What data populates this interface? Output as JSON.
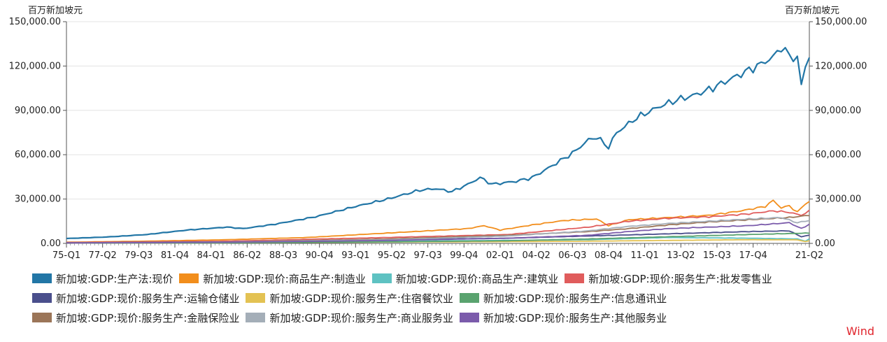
{
  "chart_data": {
    "type": "line",
    "y_unit_left": "百万新加坡元",
    "y_unit_right": "百万新加坡元",
    "ylim": [
      0,
      150000
    ],
    "y_ticks": [
      "0.00",
      "30,000.00",
      "60,000.00",
      "90,000.00",
      "120,000.00",
      "150,000.00"
    ],
    "y_tick_values": [
      0,
      30000,
      60000,
      90000,
      120000,
      150000
    ],
    "x_ticks": [
      "75-Q1",
      "77-Q2",
      "79-Q3",
      "81-Q4",
      "84-Q1",
      "86-Q2",
      "88-Q3",
      "90-Q4",
      "93-Q1",
      "95-Q2",
      "97-Q3",
      "99-Q4",
      "02-Q1",
      "04-Q2",
      "06-Q3",
      "08-Q4",
      "11-Q1",
      "13-Q2",
      "15-Q3",
      "17-Q4",
      "21-Q2"
    ],
    "x_tick_index": [
      0,
      9,
      18,
      27,
      36,
      45,
      54,
      63,
      72,
      81,
      90,
      99,
      108,
      117,
      126,
      135,
      144,
      153,
      162,
      171,
      185
    ],
    "period_start": "1975-Q1",
    "period_end": "2021-Q2",
    "grid": true,
    "legend_position": "bottom",
    "series": [
      {
        "name": "新加坡:GDP:生产法:现价",
        "color": "#2276a6",
        "anchors": [
          [
            0,
            3300
          ],
          [
            10,
            4300
          ],
          [
            20,
            6000
          ],
          [
            30,
            9000
          ],
          [
            40,
            11000
          ],
          [
            44,
            10000
          ],
          [
            52,
            13000
          ],
          [
            62,
            18000
          ],
          [
            72,
            25000
          ],
          [
            80,
            30000
          ],
          [
            88,
            36000
          ],
          [
            92,
            37000
          ],
          [
            96,
            35000
          ],
          [
            100,
            40000
          ],
          [
            103,
            44500
          ],
          [
            106,
            40000
          ],
          [
            112,
            42000
          ],
          [
            116,
            44500
          ],
          [
            120,
            51000
          ],
          [
            126,
            61000
          ],
          [
            130,
            70000
          ],
          [
            132,
            72000
          ],
          [
            135,
            65000
          ],
          [
            137,
            75000
          ],
          [
            142,
            85000
          ],
          [
            148,
            93000
          ],
          [
            152,
            97000
          ],
          [
            156,
            100000
          ],
          [
            160,
            104000
          ],
          [
            166,
            112000
          ],
          [
            172,
            120000
          ],
          [
            176,
            126000
          ],
          [
            178,
            133000
          ],
          [
            180,
            127000
          ],
          [
            182,
            125000
          ],
          [
            183,
            107000
          ],
          [
            184,
            120000
          ],
          [
            185,
            127000
          ]
        ]
      },
      {
        "name": "新加坡:GDP:现价:商品生产:制造业",
        "color": "#f28e1c",
        "anchors": [
          [
            0,
            800
          ],
          [
            20,
            1500
          ],
          [
            40,
            2500
          ],
          [
            60,
            4000
          ],
          [
            80,
            7000
          ],
          [
            100,
            10000
          ],
          [
            104,
            12000
          ],
          [
            108,
            9000
          ],
          [
            116,
            12500
          ],
          [
            124,
            15500
          ],
          [
            132,
            16500
          ],
          [
            135,
            12000
          ],
          [
            140,
            16000
          ],
          [
            150,
            17500
          ],
          [
            160,
            19000
          ],
          [
            168,
            22000
          ],
          [
            174,
            25000
          ],
          [
            176,
            29000
          ],
          [
            178,
            24000
          ],
          [
            180,
            25500
          ],
          [
            182,
            21000
          ],
          [
            184,
            27000
          ],
          [
            185,
            28000
          ]
        ]
      },
      {
        "name": "新加坡:GDP:现价:商品生产:建筑业",
        "color": "#5ec2c2",
        "anchors": [
          [
            0,
            200
          ],
          [
            40,
            600
          ],
          [
            80,
            1500
          ],
          [
            110,
            2000
          ],
          [
            130,
            2500
          ],
          [
            150,
            4000
          ],
          [
            170,
            3500
          ],
          [
            182,
            3000
          ],
          [
            184,
            1500
          ],
          [
            185,
            3000
          ]
        ]
      },
      {
        "name": "新加坡:GDP:现价:服务生产:批发零售业",
        "color": "#e05c5c",
        "anchors": [
          [
            0,
            600
          ],
          [
            40,
            1500
          ],
          [
            80,
            4000
          ],
          [
            110,
            6000
          ],
          [
            130,
            11000
          ],
          [
            140,
            15000
          ],
          [
            150,
            17000
          ],
          [
            160,
            18000
          ],
          [
            170,
            20000
          ],
          [
            176,
            22000
          ],
          [
            180,
            21000
          ],
          [
            183,
            19000
          ],
          [
            185,
            22000
          ]
        ]
      },
      {
        "name": "新加坡:GDP:现价:服务生产:运输仓储业",
        "color": "#4a4f8c",
        "anchors": [
          [
            0,
            400
          ],
          [
            40,
            1000
          ],
          [
            80,
            2500
          ],
          [
            110,
            3500
          ],
          [
            130,
            5000
          ],
          [
            150,
            6500
          ],
          [
            170,
            8000
          ],
          [
            180,
            8500
          ],
          [
            183,
            4500
          ],
          [
            185,
            5500
          ]
        ]
      },
      {
        "name": "新加坡:GDP:现价:服务生产:住宿餐饮业",
        "color": "#e3c253",
        "anchors": [
          [
            0,
            200
          ],
          [
            40,
            400
          ],
          [
            80,
            900
          ],
          [
            110,
            1200
          ],
          [
            130,
            1500
          ],
          [
            150,
            2000
          ],
          [
            170,
            2500
          ],
          [
            182,
            2400
          ],
          [
            184,
            1200
          ],
          [
            185,
            1800
          ]
        ]
      },
      {
        "name": "新加坡:GDP:现价:服务生产:信息通讯业",
        "color": "#5aa36f",
        "anchors": [
          [
            0,
            150
          ],
          [
            40,
            400
          ],
          [
            80,
            1000
          ],
          [
            110,
            1800
          ],
          [
            130,
            3000
          ],
          [
            150,
            4500
          ],
          [
            170,
            6000
          ],
          [
            185,
            7000
          ]
        ]
      },
      {
        "name": "新加坡:GDP:现价:服务生产:金融保险业",
        "color": "#9b7558",
        "anchors": [
          [
            0,
            300
          ],
          [
            40,
            900
          ],
          [
            80,
            3000
          ],
          [
            110,
            5500
          ],
          [
            130,
            8000
          ],
          [
            140,
            10000
          ],
          [
            150,
            12500
          ],
          [
            160,
            14500
          ],
          [
            170,
            16000
          ],
          [
            180,
            17500
          ],
          [
            185,
            19000
          ]
        ]
      },
      {
        "name": "新加坡:GDP:现价:服务生产:商业服务业",
        "color": "#a4aeb8",
        "anchors": [
          [
            0,
            300
          ],
          [
            40,
            900
          ],
          [
            80,
            2500
          ],
          [
            110,
            5000
          ],
          [
            130,
            8500
          ],
          [
            140,
            11500
          ],
          [
            150,
            13500
          ],
          [
            160,
            15000
          ],
          [
            170,
            16500
          ],
          [
            178,
            17500
          ],
          [
            182,
            14000
          ],
          [
            185,
            15500
          ]
        ]
      },
      {
        "name": "新加坡:GDP:现价:服务生产:其他服务业",
        "color": "#7b5bab",
        "anchors": [
          [
            0,
            300
          ],
          [
            40,
            800
          ],
          [
            80,
            2000
          ],
          [
            110,
            3500
          ],
          [
            130,
            5500
          ],
          [
            140,
            8000
          ],
          [
            150,
            10000
          ],
          [
            160,
            11000
          ],
          [
            170,
            12000
          ],
          [
            180,
            14000
          ],
          [
            183,
            10000
          ],
          [
            185,
            13000
          ]
        ]
      }
    ]
  },
  "source_label": "Wind"
}
